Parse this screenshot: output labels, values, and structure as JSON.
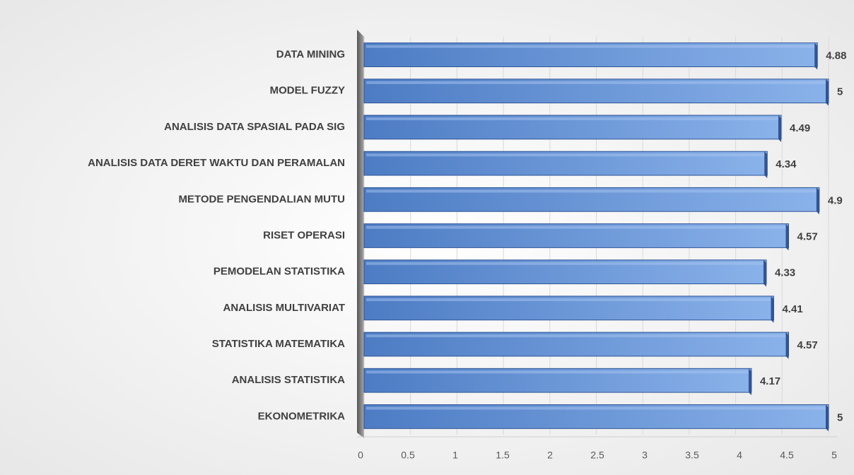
{
  "chart_data": {
    "type": "bar",
    "orientation": "horizontal",
    "categories": [
      "DATA MINING",
      "MODEL FUZZY",
      "ANALISIS DATA SPASIAL PADA SIG",
      "ANALISIS DATA DERET WAKTU DAN PERAMALAN",
      "METODE PENGENDALIAN MUTU",
      "RISET OPERASI",
      "PEMODELAN STATISTIKA",
      "ANALISIS MULTIVARIAT",
      "STATISTIKA MATEMATIKA",
      "ANALISIS STATISTIKA",
      "EKONOMETRIKA"
    ],
    "values": [
      4.88,
      5,
      4.49,
      4.34,
      4.9,
      4.57,
      4.33,
      4.41,
      4.57,
      4.17,
      5
    ],
    "color": "#5b8bd0",
    "xlim": [
      0,
      5
    ],
    "xticks": [
      0,
      0.5,
      1,
      1.5,
      2,
      2.5,
      3,
      3.5,
      4,
      4.5,
      5
    ],
    "grid": true
  }
}
